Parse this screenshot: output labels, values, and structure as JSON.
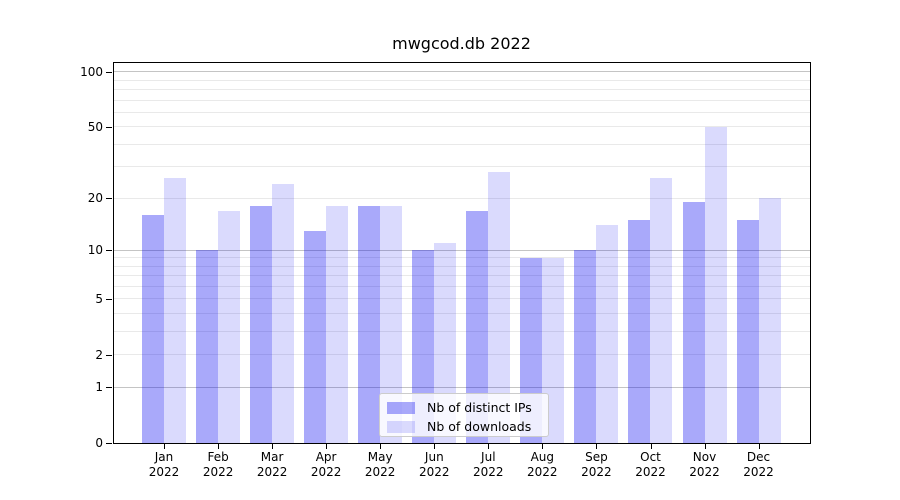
{
  "chart_data": {
    "type": "bar",
    "title": "mwgcod.db 2022",
    "categories": [
      {
        "month": "Jan",
        "year": "2022"
      },
      {
        "month": "Feb",
        "year": "2022"
      },
      {
        "month": "Mar",
        "year": "2022"
      },
      {
        "month": "Apr",
        "year": "2022"
      },
      {
        "month": "May",
        "year": "2022"
      },
      {
        "month": "Jun",
        "year": "2022"
      },
      {
        "month": "Jul",
        "year": "2022"
      },
      {
        "month": "Aug",
        "year": "2022"
      },
      {
        "month": "Sep",
        "year": "2022"
      },
      {
        "month": "Oct",
        "year": "2022"
      },
      {
        "month": "Nov",
        "year": "2022"
      },
      {
        "month": "Dec",
        "year": "2022"
      }
    ],
    "series": [
      {
        "name": "Nb of distinct IPs",
        "color": "#0505f0",
        "alpha": 0.345,
        "values": [
          16,
          10,
          18,
          13,
          18,
          10,
          17,
          9,
          10,
          15,
          19,
          15
        ]
      },
      {
        "name": "Nb of downloads",
        "color": "#0505f0",
        "alpha": 0.15,
        "values": [
          26,
          17,
          24,
          18,
          18,
          11,
          28,
          9,
          14,
          26,
          50,
          20
        ]
      }
    ],
    "y_scale": "log1p",
    "ylim": [
      0,
      113
    ],
    "y_ticks": [
      {
        "value": 0,
        "label": "0"
      },
      {
        "value": 1,
        "label": "1"
      },
      {
        "value": 2,
        "label": "2"
      },
      {
        "value": 5,
        "label": "5"
      },
      {
        "value": 10,
        "label": "10"
      },
      {
        "value": 20,
        "label": "20"
      },
      {
        "value": 50,
        "label": "50"
      },
      {
        "value": 100,
        "label": "100"
      }
    ],
    "gridlines": {
      "minor": [
        2,
        3,
        4,
        5,
        6,
        7,
        8,
        9,
        20,
        30,
        40,
        50,
        60,
        70,
        80,
        90
      ],
      "major": [
        1,
        10,
        100
      ],
      "minor_color": "#e9e9e9",
      "major_color": "#c4c4c4"
    },
    "legend": {
      "position": "lower center",
      "items": [
        "Nb of distinct IPs",
        "Nb of downloads"
      ]
    }
  }
}
